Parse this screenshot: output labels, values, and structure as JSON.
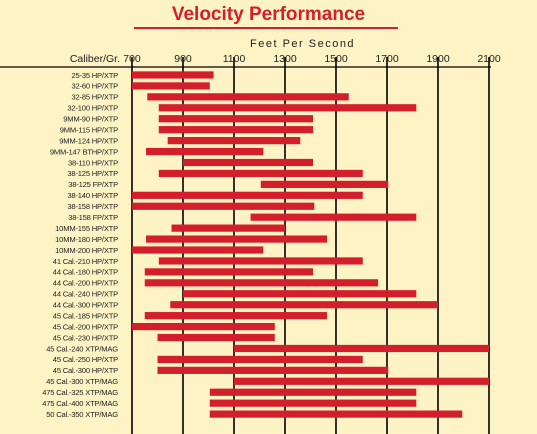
{
  "chart_data": {
    "type": "bar",
    "orientation": "horizontal",
    "title": "Velocity Performance",
    "xlabel": "Feet Per Second",
    "category_header": "Caliber/Gr.",
    "xlim": [
      700,
      2100
    ],
    "xticks": [
      700,
      900,
      1100,
      1300,
      1500,
      1700,
      1900,
      2100
    ],
    "grid": true,
    "bar_color": "#d31f2c",
    "rows": [
      {
        "label": "25-35 HP/XTP",
        "start": 700,
        "end": 1020
      },
      {
        "label": "32-60 HP/XTP",
        "start": 700,
        "end": 1005
      },
      {
        "label": "32-85 HP/XTP",
        "start": 760,
        "end": 1550
      },
      {
        "label": "32-100 HP/XTP",
        "start": 805,
        "end": 1815
      },
      {
        "label": "9MM-90 HP/XTP",
        "start": 805,
        "end": 1410
      },
      {
        "label": "9MM-115 HP/XTP",
        "start": 805,
        "end": 1410
      },
      {
        "label": "9MM-124 HP/XTP",
        "start": 840,
        "end": 1360
      },
      {
        "label": "9MM-147 BTHP/XTP",
        "start": 755,
        "end": 1215
      },
      {
        "label": "38-110 HP/XTP",
        "start": 900,
        "end": 1410
      },
      {
        "label": "38-125 HP/XTP",
        "start": 805,
        "end": 1605
      },
      {
        "label": "38-125 FP/XTP",
        "start": 1205,
        "end": 1705
      },
      {
        "label": "38-140 HP/XTP",
        "start": 700,
        "end": 1605
      },
      {
        "label": "38-158 HP/XTP",
        "start": 700,
        "end": 1415
      },
      {
        "label": "38-158 FP/XTP",
        "start": 1165,
        "end": 1815
      },
      {
        "label": "10MM-155 HP/XTP",
        "start": 855,
        "end": 1300
      },
      {
        "label": "10MM-180 HP/XTP",
        "start": 755,
        "end": 1465
      },
      {
        "label": "10MM-200 HP/XTP",
        "start": 700,
        "end": 1215
      },
      {
        "label": "41 Cal.-210 HP/XTP",
        "start": 805,
        "end": 1605
      },
      {
        "label": "44 Cal.-180 HP/XTP",
        "start": 750,
        "end": 1410
      },
      {
        "label": "44 Cal.-200 HP/XTP",
        "start": 750,
        "end": 1665
      },
      {
        "label": "44 Cal.-240 HP/XTP",
        "start": 900,
        "end": 1815
      },
      {
        "label": "44 Cal.-300 HP/XTP",
        "start": 850,
        "end": 1900
      },
      {
        "label": "45 Cal.-185 HP/XTP",
        "start": 750,
        "end": 1465
      },
      {
        "label": "45 Cal.-200 HP/XTP",
        "start": 700,
        "end": 1260
      },
      {
        "label": "45 Cal.-230 HP/XTP",
        "start": 800,
        "end": 1260
      },
      {
        "label": "45 Cal.-240 XTP/MAG",
        "start": 1100,
        "end": 2100
      },
      {
        "label": "45 Cal.-250 HP/XTP",
        "start": 800,
        "end": 1605
      },
      {
        "label": "45 Cal.-300 HP/XTP",
        "start": 800,
        "end": 1705
      },
      {
        "label": "45 Cal.-300 XTP/MAG",
        "start": 1100,
        "end": 2100
      },
      {
        "label": "475 Cal.-325 XTP/MAG",
        "start": 1005,
        "end": 1815
      },
      {
        "label": "475 Cal.-400 XTP/MAG",
        "start": 1005,
        "end": 1815
      },
      {
        "label": "50 Cal.-350 XTP/MAG",
        "start": 1005,
        "end": 1995
      }
    ]
  }
}
